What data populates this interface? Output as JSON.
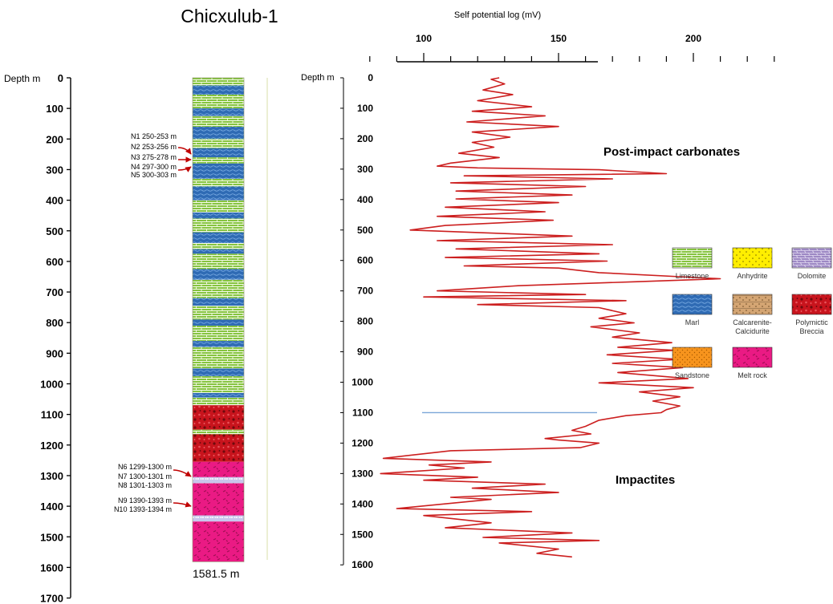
{
  "chart_data": [
    {
      "type": "lithologic-column",
      "title": "Chicxulub-1",
      "ylabel": "Depth m",
      "ylim": [
        0,
        1700
      ],
      "yticks": [
        "0",
        "100",
        "200",
        "300",
        "400",
        "500",
        "600",
        "700",
        "800",
        "900",
        "1000",
        "1100",
        "1200",
        "1300",
        "1400",
        "1500",
        "1600",
        "1700"
      ],
      "bottom_label": "1581.5 m",
      "units": [
        {
          "lithology": "limestone",
          "from": 0,
          "to": 25
        },
        {
          "lithology": "marl",
          "from": 25,
          "to": 55
        },
        {
          "lithology": "limestone",
          "from": 55,
          "to": 100
        },
        {
          "lithology": "marl",
          "from": 100,
          "to": 125
        },
        {
          "lithology": "limestone",
          "from": 125,
          "to": 160
        },
        {
          "lithology": "marl",
          "from": 160,
          "to": 200
        },
        {
          "lithology": "limestone",
          "from": 200,
          "to": 230
        },
        {
          "lithology": "marl",
          "from": 230,
          "to": 260
        },
        {
          "lithology": "limestone",
          "from": 260,
          "to": 280
        },
        {
          "lithology": "marl",
          "from": 280,
          "to": 330
        },
        {
          "lithology": "limestone",
          "from": 330,
          "to": 355
        },
        {
          "lithology": "marl",
          "from": 355,
          "to": 400
        },
        {
          "lithology": "limestone",
          "from": 400,
          "to": 440
        },
        {
          "lithology": "marl",
          "from": 440,
          "to": 460
        },
        {
          "lithology": "limestone",
          "from": 460,
          "to": 505
        },
        {
          "lithology": "marl",
          "from": 505,
          "to": 540
        },
        {
          "lithology": "limestone",
          "from": 540,
          "to": 560
        },
        {
          "lithology": "marl",
          "from": 560,
          "to": 575
        },
        {
          "lithology": "limestone",
          "from": 575,
          "to": 625
        },
        {
          "lithology": "marl",
          "from": 625,
          "to": 660
        },
        {
          "lithology": "limestone",
          "from": 660,
          "to": 720
        },
        {
          "lithology": "marl",
          "from": 720,
          "to": 745
        },
        {
          "lithology": "limestone",
          "from": 745,
          "to": 790
        },
        {
          "lithology": "marl",
          "from": 790,
          "to": 810
        },
        {
          "lithology": "limestone",
          "from": 810,
          "to": 860
        },
        {
          "lithology": "marl",
          "from": 860,
          "to": 880
        },
        {
          "lithology": "limestone",
          "from": 880,
          "to": 950
        },
        {
          "lithology": "marl",
          "from": 950,
          "to": 975
        },
        {
          "lithology": "limestone",
          "from": 975,
          "to": 1030
        },
        {
          "lithology": "marl",
          "from": 1030,
          "to": 1045
        },
        {
          "lithology": "limestone",
          "from": 1045,
          "to": 1070
        },
        {
          "lithology": "breccia",
          "from": 1070,
          "to": 1150
        },
        {
          "lithology": "limestone",
          "from": 1150,
          "to": 1165
        },
        {
          "lithology": "breccia",
          "from": 1165,
          "to": 1255
        },
        {
          "lithology": "meltrock",
          "from": 1255,
          "to": 1305
        },
        {
          "lithology": "marker",
          "from": 1305,
          "to": 1325
        },
        {
          "lithology": "meltrock",
          "from": 1325,
          "to": 1430
        },
        {
          "lithology": "marker",
          "from": 1430,
          "to": 1450
        },
        {
          "lithology": "meltrock",
          "from": 1450,
          "to": 1581.5
        }
      ],
      "samples": [
        {
          "label": "N1 250-253 m",
          "depth": 251
        },
        {
          "label": "N2 253-256 m",
          "depth": 254
        },
        {
          "label": "N3 275-278 m",
          "depth": 276
        },
        {
          "label": "N4 297-300 m",
          "depth": 298
        },
        {
          "label": "N5 300-303 m",
          "depth": 301
        },
        {
          "label": "N6 1299-1300 m",
          "depth": 1299
        },
        {
          "label": "N7 1300-1301 m",
          "depth": 1300
        },
        {
          "label": "N8 1301-1303 m",
          "depth": 1302
        },
        {
          "label": "N9 1390-1393 m",
          "depth": 1391
        },
        {
          "label": "N10 1393-1394 m",
          "depth": 1393
        }
      ]
    },
    {
      "type": "line",
      "title": "Self potential log (mV)",
      "xlabel": "Self potential log (mV)",
      "ylabel": "Depth m",
      "xlim": [
        80,
        230
      ],
      "xticks": [
        "100",
        "150",
        "200"
      ],
      "xtick_values": [
        100,
        150,
        200
      ],
      "ylim": [
        0,
        1600
      ],
      "yticks": [
        "0",
        "100",
        "200",
        "300",
        "400",
        "500",
        "600",
        "700",
        "800",
        "900",
        "1000",
        "1100",
        "1200",
        "1300",
        "1400",
        "1500",
        "1600"
      ],
      "boundary_depth": 1100,
      "zones": [
        "Post-impact carbonates",
        "Impactites"
      ],
      "series": [
        {
          "name": "Self potential",
          "color": "#cc1f1f",
          "points": [
            [
              128,
              0
            ],
            [
              125,
              5
            ],
            [
              130,
              20
            ],
            [
              122,
              40
            ],
            [
              133,
              55
            ],
            [
              120,
              75
            ],
            [
              140,
              95
            ],
            [
              118,
              110
            ],
            [
              145,
              125
            ],
            [
              116,
              145
            ],
            [
              150,
              160
            ],
            [
              118,
              178
            ],
            [
              132,
              195
            ],
            [
              118,
              212
            ],
            [
              126,
              228
            ],
            [
              113,
              248
            ],
            [
              128,
              262
            ],
            [
              110,
              280
            ],
            [
              105,
              290
            ],
            [
              120,
              296
            ],
            [
              165,
              302
            ],
            [
              190,
              315
            ],
            [
              115,
              322
            ],
            [
              170,
              332
            ],
            [
              110,
              345
            ],
            [
              160,
              357
            ],
            [
              112,
              372
            ],
            [
              155,
              385
            ],
            [
              112,
              398
            ],
            [
              150,
              410
            ],
            [
              108,
              425
            ],
            [
              145,
              440
            ],
            [
              105,
              455
            ],
            [
              148,
              468
            ],
            [
              108,
              485
            ],
            [
              95,
              500
            ],
            [
              155,
              520
            ],
            [
              105,
              535
            ],
            [
              170,
              548
            ],
            [
              112,
              562
            ],
            [
              165,
              578
            ],
            [
              108,
              590
            ],
            [
              168,
              602
            ],
            [
              115,
              618
            ],
            [
              150,
              625
            ],
            [
              165,
              640
            ],
            [
              210,
              660
            ],
            [
              178,
              670
            ],
            [
              135,
              683
            ],
            [
              105,
              700
            ],
            [
              160,
              712
            ],
            [
              100,
              720
            ],
            [
              175,
              732
            ],
            [
              120,
              745
            ],
            [
              165,
              755
            ],
            [
              175,
              775
            ],
            [
              165,
              790
            ],
            [
              178,
              805
            ],
            [
              162,
              818
            ],
            [
              180,
              838
            ],
            [
              170,
              852
            ],
            [
              192,
              870
            ],
            [
              172,
              885
            ],
            [
              193,
              895
            ],
            [
              168,
              910
            ],
            [
              195,
              925
            ],
            [
              170,
              938
            ],
            [
              196,
              952
            ],
            [
              172,
              968
            ],
            [
              198,
              988
            ],
            [
              165,
              1002
            ],
            [
              200,
              1018
            ],
            [
              180,
              1032
            ],
            [
              195,
              1048
            ],
            [
              185,
              1062
            ],
            [
              195,
              1078
            ],
            [
              190,
              1090
            ],
            [
              188,
              1100
            ],
            [
              175,
              1110
            ],
            [
              165,
              1125
            ],
            [
              160,
              1145
            ],
            [
              155,
              1158
            ],
            [
              162,
              1170
            ],
            [
              145,
              1185
            ],
            [
              150,
              1190
            ],
            [
              165,
              1200
            ],
            [
              158,
              1215
            ],
            [
              110,
              1225
            ],
            [
              85,
              1250
            ],
            [
              125,
              1262
            ],
            [
              102,
              1272
            ],
            [
              115,
              1282
            ],
            [
              84,
              1300
            ],
            [
              120,
              1312
            ],
            [
              100,
              1322
            ],
            [
              145,
              1335
            ],
            [
              118,
              1348
            ],
            [
              150,
              1362
            ],
            [
              110,
              1378
            ],
            [
              125,
              1385
            ],
            [
              90,
              1415
            ],
            [
              140,
              1425
            ],
            [
              100,
              1438
            ],
            [
              125,
              1462
            ],
            [
              108,
              1478
            ],
            [
              155,
              1495
            ],
            [
              122,
              1510
            ],
            [
              165,
              1520
            ],
            [
              128,
              1528
            ],
            [
              150,
              1548
            ],
            [
              142,
              1562
            ],
            [
              155,
              1574
            ]
          ]
        }
      ]
    }
  ],
  "legend": [
    {
      "key": "limestone",
      "label_lines": [
        "Limestone"
      ],
      "color": "#86c440"
    },
    {
      "key": "anhydrite",
      "label_lines": [
        "Anhydrite"
      ],
      "color": "#ffee00"
    },
    {
      "key": "dolomite",
      "label_lines": [
        "Dolomite"
      ],
      "color": "#9d88c4"
    },
    {
      "key": "marl",
      "label_lines": [
        "Marl"
      ],
      "color": "#2f6bb4"
    },
    {
      "key": "calcarenite",
      "label_lines": [
        "Calcarenite-",
        "Calcidurite"
      ],
      "color": "#d4a573"
    },
    {
      "key": "breccia",
      "label_lines": [
        "Polymictic",
        "Breccia"
      ],
      "color": "#c8141d"
    },
    {
      "key": "sandstone",
      "label_lines": [
        "Sandstone"
      ],
      "color": "#f7941d"
    },
    {
      "key": "meltrock",
      "label_lines": [
        "Melt rock"
      ],
      "color": "#ea1a84"
    }
  ],
  "colors": {
    "log_line": "#cc1f1f",
    "boundary_line": "#7aa6d8",
    "arrow": "#c00000",
    "marker_band": "#c9c6ec"
  }
}
